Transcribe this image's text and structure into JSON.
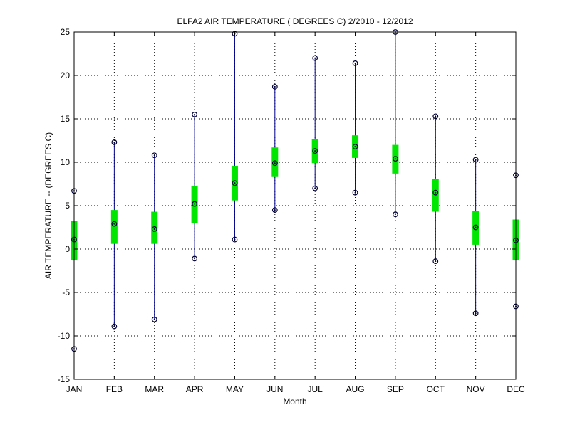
{
  "chart_data": {
    "type": "boxplot",
    "title": "ELFA2  AIR TEMPERATURE ( DEGREES C) 2/2010 - 12/2012",
    "xlabel": "Month",
    "ylabel": "AIR TEMPERATURE -- (DEGREES C)",
    "categories": [
      "JAN",
      "FEB",
      "MAR",
      "APR",
      "MAY",
      "JUN",
      "JUL",
      "AUG",
      "SEP",
      "OCT",
      "NOV",
      "DEC"
    ],
    "ylim": [
      -15,
      25
    ],
    "yticks": [
      -15,
      -10,
      -5,
      0,
      5,
      10,
      15,
      20,
      25
    ],
    "grid": true,
    "series": [
      {
        "min": [
          -11.5,
          -8.9,
          -8.1,
          -1.1,
          1.1,
          4.5,
          7.0,
          6.5,
          4.0,
          -1.4,
          -7.4,
          -6.6
        ],
        "q1": [
          -1.3,
          0.6,
          0.6,
          3.0,
          5.6,
          8.3,
          9.9,
          10.5,
          8.7,
          4.3,
          0.5,
          -1.3
        ],
        "median": [
          1.1,
          2.9,
          2.3,
          5.2,
          7.6,
          9.9,
          11.3,
          11.8,
          10.4,
          6.5,
          2.5,
          1.0
        ],
        "q3": [
          3.2,
          4.5,
          4.3,
          7.3,
          9.6,
          11.7,
          12.7,
          13.1,
          12.0,
          8.1,
          4.4,
          3.4
        ],
        "max": [
          6.7,
          12.3,
          10.8,
          15.5,
          24.8,
          18.7,
          22.0,
          21.4,
          25.0,
          15.3,
          10.3,
          8.5
        ]
      }
    ]
  },
  "colors": {
    "whisker": "#00008b",
    "box": "#00e600",
    "marker": "#000033",
    "grid": "#000000",
    "axis": "#000000"
  }
}
